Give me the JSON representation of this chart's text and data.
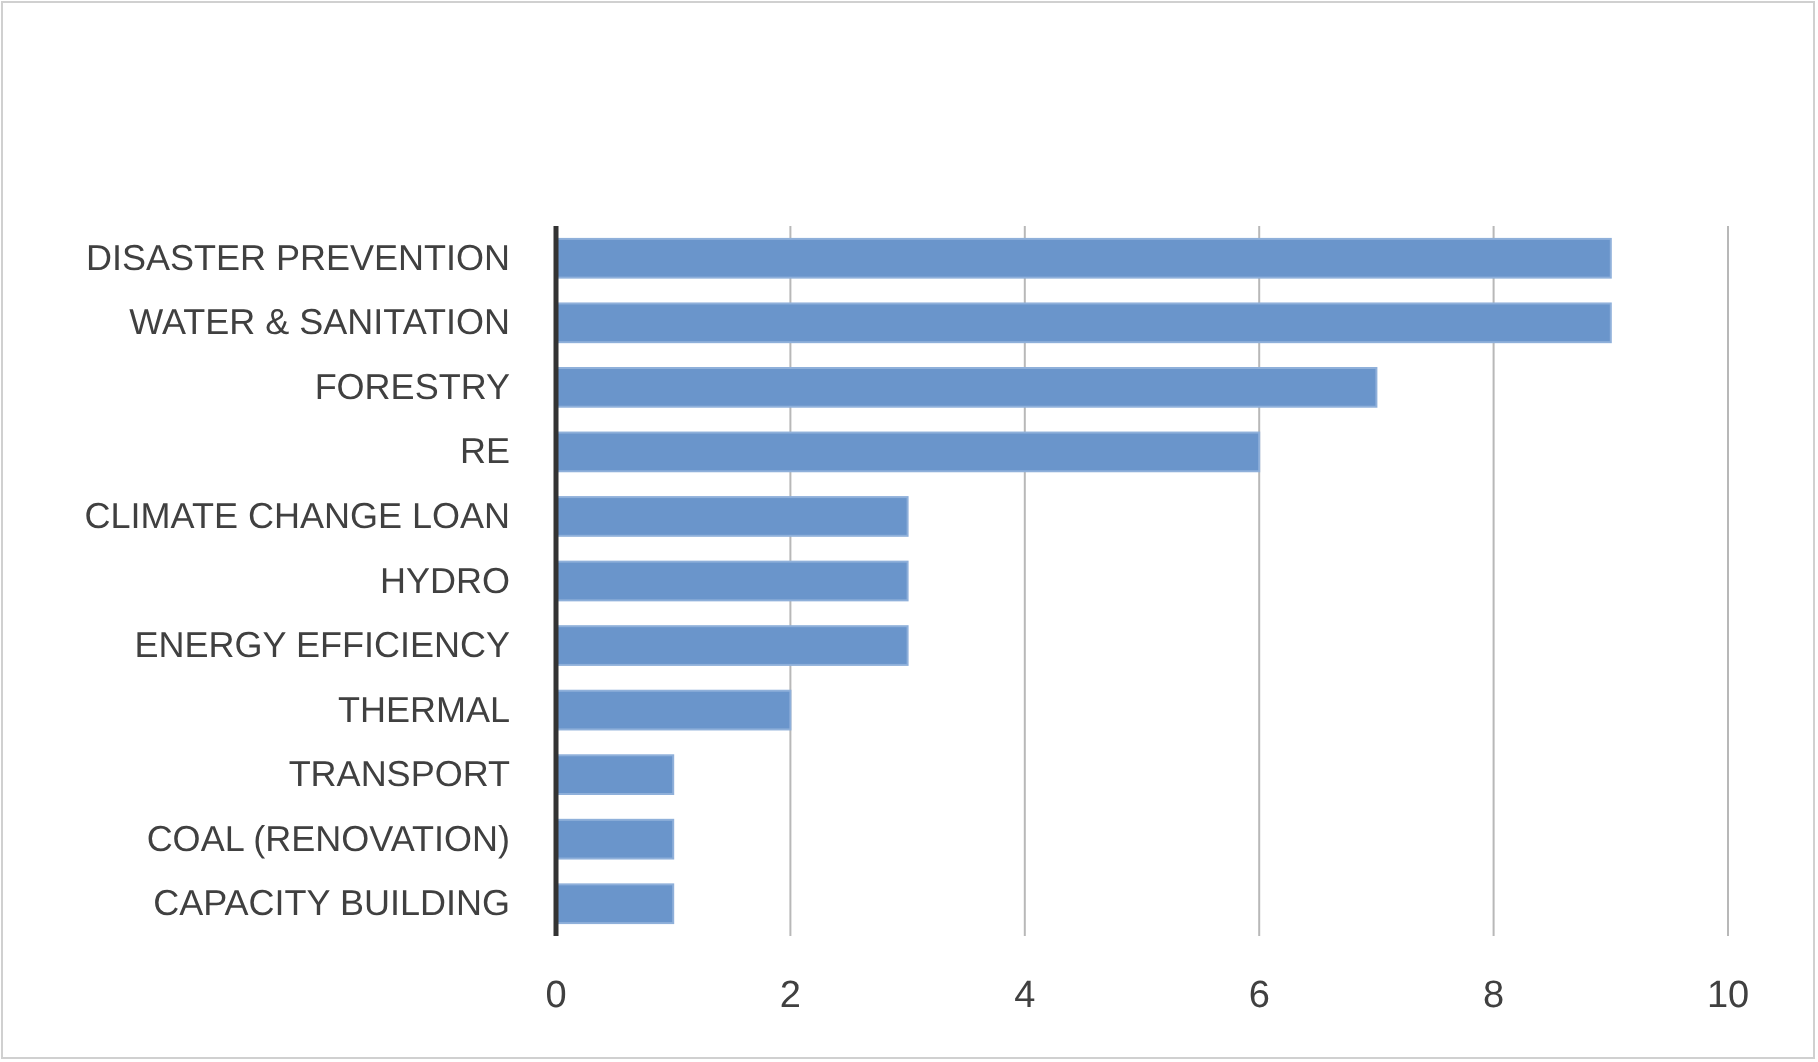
{
  "chart_data": {
    "type": "bar",
    "orientation": "horizontal",
    "categories": [
      "DISASTER PREVENTION",
      "WATER & SANITATION",
      "FORESTRY",
      "RE",
      "CLIMATE CHANGE LOAN",
      "HYDRO",
      "ENERGY EFFICIENCY",
      "THERMAL",
      "TRANSPORT",
      "COAL (RENOVATION)",
      "CAPACITY BUILDING"
    ],
    "values": [
      9,
      9,
      7,
      6,
      3,
      3,
      3,
      2,
      1,
      1,
      1
    ],
    "color": "#6a95cb",
    "xlim": [
      0,
      10
    ],
    "xticks": [
      0,
      2,
      4,
      6,
      8,
      10
    ],
    "grid": "x"
  }
}
